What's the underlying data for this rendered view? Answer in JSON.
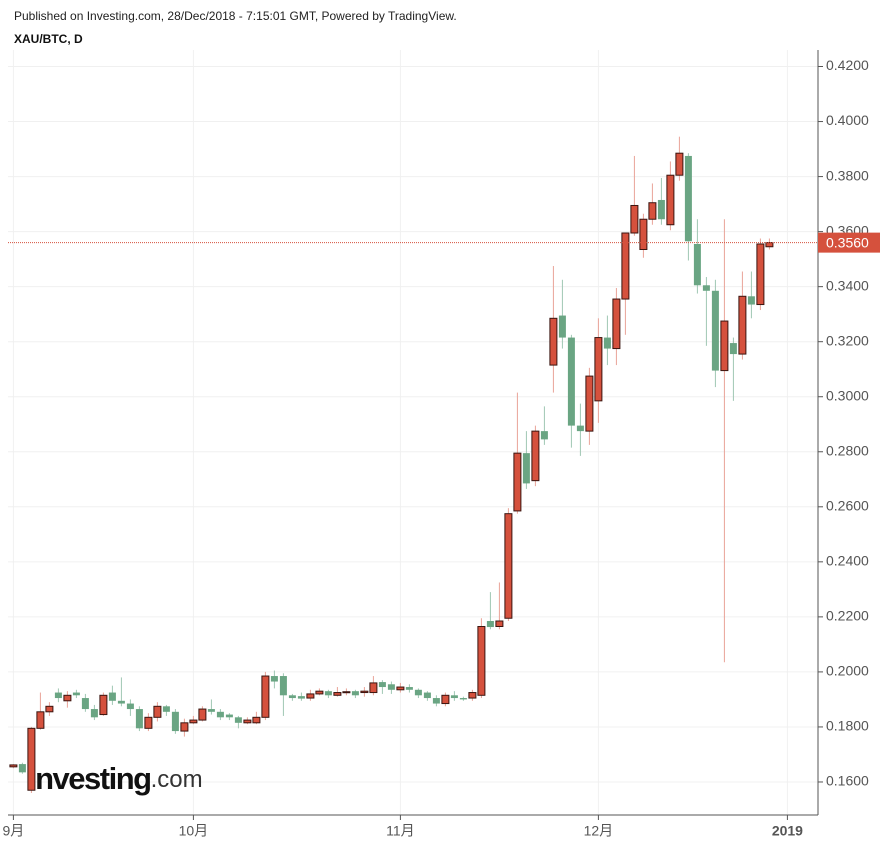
{
  "chart_data": {
    "type": "candlestick",
    "header": "Published on Investing.com, 28/Dec/2018 - 7:15:01 GMT, Powered by TradingView.",
    "title": "XAU/BTC, D",
    "watermark": [
      "Investing",
      ".com"
    ],
    "grid": true,
    "up_color": "#d5513d",
    "down_color": "#6aa583",
    "xlim": [
      -0.6,
      89.4
    ],
    "xticks": [
      {
        "value": 0,
        "label": "9月"
      },
      {
        "value": 20,
        "label": "10月"
      },
      {
        "value": 43,
        "label": "11月"
      },
      {
        "value": 65,
        "label": "12月"
      },
      {
        "value": 86,
        "label": "2019"
      }
    ],
    "ylim": [
      0.148,
      0.426
    ],
    "yticks": [
      {
        "value": 0.16,
        "label": "0.1600"
      },
      {
        "value": 0.18,
        "label": "0.1800"
      },
      {
        "value": 0.2,
        "label": "0.2000"
      },
      {
        "value": 0.22,
        "label": "0.2200"
      },
      {
        "value": 0.24,
        "label": "0.2400"
      },
      {
        "value": 0.26,
        "label": "0.2600"
      },
      {
        "value": 0.28,
        "label": "0.2800"
      },
      {
        "value": 0.3,
        "label": "0.3000"
      },
      {
        "value": 0.32,
        "label": "0.3200"
      },
      {
        "value": 0.34,
        "label": "0.3400"
      },
      {
        "value": 0.36,
        "label": "0.3600"
      },
      {
        "value": 0.38,
        "label": "0.3800"
      },
      {
        "value": 0.4,
        "label": "0.4000"
      },
      {
        "value": 0.42,
        "label": "0.4200"
      }
    ],
    "last_price": {
      "value": 0.356,
      "label": "0.3560"
    },
    "open": [
      0.1655,
      0.1665,
      0.157,
      0.1795,
      0.1855,
      0.1925,
      0.1895,
      0.1925,
      0.1905,
      0.1865,
      0.1845,
      0.1925,
      0.1895,
      0.1885,
      0.1865,
      0.1795,
      0.1835,
      0.1875,
      0.1855,
      0.1785,
      0.1815,
      0.1825,
      0.1865,
      0.1855,
      0.1845,
      0.1835,
      0.1815,
      0.1815,
      0.1835,
      0.1985,
      0.1985,
      0.1915,
      0.1912,
      0.1905,
      0.192,
      0.193,
      0.1915,
      0.1925,
      0.193,
      0.1925,
      0.1925,
      0.1963,
      0.1955,
      0.1935,
      0.1945,
      0.1935,
      0.1925,
      0.1905,
      0.1885,
      0.1915,
      0.1905,
      0.1905,
      0.1915,
      0.2185,
      0.2165,
      0.2195,
      0.2585,
      0.2795,
      0.2695,
      0.2875,
      0.3115,
      0.3295,
      0.3215,
      0.2895,
      0.2875,
      0.2985,
      0.3215,
      0.3175,
      0.3355,
      0.3595,
      0.3535,
      0.3645,
      0.3715,
      0.3625,
      0.3805,
      0.3875,
      0.3555,
      0.3405,
      0.3385,
      0.3095,
      0.3195,
      0.3155,
      0.3365,
      0.3335,
      0.3545
    ],
    "high": [
      0.1665,
      0.167,
      0.18,
      0.1925,
      0.189,
      0.194,
      0.193,
      0.1935,
      0.192,
      0.188,
      0.1925,
      0.195,
      0.198,
      0.19,
      0.1875,
      0.185,
      0.189,
      0.188,
      0.1865,
      0.183,
      0.184,
      0.1875,
      0.19,
      0.1865,
      0.185,
      0.184,
      0.1835,
      0.1855,
      0.2,
      0.2005,
      0.1995,
      0.192,
      0.1925,
      0.1935,
      0.194,
      0.1935,
      0.1945,
      0.194,
      0.1935,
      0.1945,
      0.1985,
      0.197,
      0.1965,
      0.196,
      0.1955,
      0.194,
      0.193,
      0.1915,
      0.1925,
      0.193,
      0.191,
      0.1935,
      0.2195,
      0.229,
      0.2325,
      0.2595,
      0.3015,
      0.2875,
      0.2895,
      0.2965,
      0.3475,
      0.3425,
      0.3225,
      0.2975,
      0.3105,
      0.3285,
      0.3295,
      0.3395,
      0.3595,
      0.3875,
      0.3665,
      0.3775,
      0.3795,
      0.3855,
      0.3945,
      0.3885,
      0.3645,
      0.3435,
      0.3425,
      0.3645,
      0.3215,
      0.3455,
      0.3455,
      0.3575,
      0.3575
    ],
    "low": [
      0.165,
      0.163,
      0.156,
      0.179,
      0.184,
      0.189,
      0.187,
      0.1905,
      0.1855,
      0.1825,
      0.184,
      0.188,
      0.1875,
      0.184,
      0.1785,
      0.1785,
      0.182,
      0.184,
      0.1775,
      0.1765,
      0.181,
      0.182,
      0.1845,
      0.1825,
      0.1825,
      0.1795,
      0.181,
      0.181,
      0.1825,
      0.194,
      0.184,
      0.1895,
      0.1895,
      0.1895,
      0.1915,
      0.1905,
      0.191,
      0.1915,
      0.1905,
      0.191,
      0.1915,
      0.192,
      0.192,
      0.1925,
      0.1925,
      0.1905,
      0.1895,
      0.1875,
      0.1875,
      0.1895,
      0.1895,
      0.1895,
      0.1905,
      0.2155,
      0.2155,
      0.2185,
      0.2575,
      0.2665,
      0.2675,
      0.2825,
      0.3015,
      0.3175,
      0.2815,
      0.2785,
      0.2825,
      0.2905,
      0.3115,
      0.3115,
      0.3225,
      0.3585,
      0.3505,
      0.3625,
      0.3625,
      0.3605,
      0.3785,
      0.3495,
      0.3375,
      0.3185,
      0.3035,
      0.2035,
      0.2985,
      0.3135,
      0.3285,
      0.3315,
      0.3535
    ],
    "close": [
      0.1662,
      0.1635,
      0.1795,
      0.1855,
      0.1875,
      0.1905,
      0.1915,
      0.1915,
      0.1865,
      0.1835,
      0.1915,
      0.1895,
      0.1885,
      0.1865,
      0.1795,
      0.1835,
      0.1875,
      0.1855,
      0.1785,
      0.1815,
      0.1825,
      0.1865,
      0.1855,
      0.1835,
      0.1835,
      0.1815,
      0.1825,
      0.1835,
      0.1985,
      0.1965,
      0.1915,
      0.1905,
      0.1903,
      0.192,
      0.193,
      0.1915,
      0.1925,
      0.1928,
      0.1915,
      0.193,
      0.196,
      0.1945,
      0.1935,
      0.1945,
      0.1935,
      0.1915,
      0.1905,
      0.1885,
      0.1915,
      0.1905,
      0.19,
      0.1925,
      0.2165,
      0.2163,
      0.2185,
      0.2575,
      0.2795,
      0.2685,
      0.2875,
      0.2845,
      0.3285,
      0.3215,
      0.2895,
      0.2875,
      0.3075,
      0.3215,
      0.3175,
      0.3355,
      0.3595,
      0.3695,
      0.3645,
      0.3705,
      0.3645,
      0.3805,
      0.3885,
      0.3565,
      0.3405,
      0.3385,
      0.3095,
      0.3275,
      0.3155,
      0.3365,
      0.3335,
      0.3555,
      0.356
    ]
  }
}
